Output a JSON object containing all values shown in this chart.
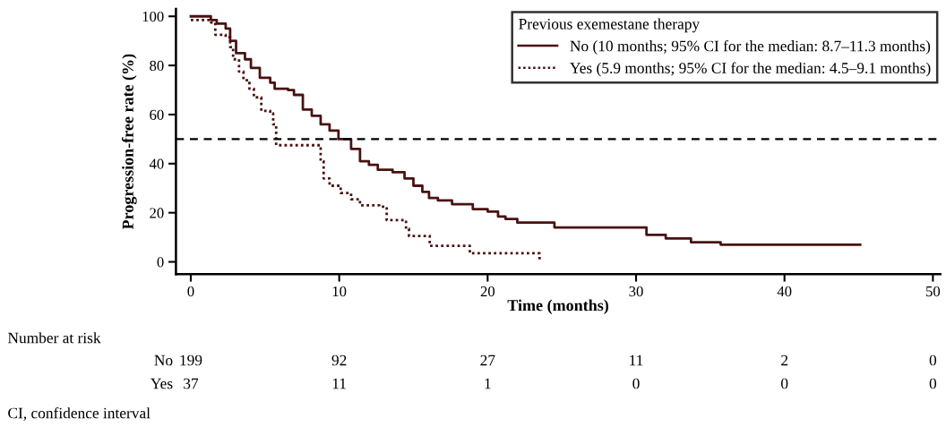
{
  "chart_data": {
    "type": "step",
    "xlabel": "Time (months)",
    "ylabel": "Progression-free rate (%)",
    "xlim": [
      -1,
      50.5
    ],
    "ylim": [
      -5,
      103
    ],
    "xticks": [
      0,
      10,
      20,
      30,
      40,
      50
    ],
    "yticks": [
      0,
      20,
      40,
      60,
      80,
      100
    ],
    "grid": false,
    "legend": "top right",
    "legend_title": "Previous exemestane therapy",
    "series": [
      {
        "name": "No (10 months; 95% CI for the median: 8.7–11.3 months)",
        "color": "#4a1212",
        "line_style": "solid",
        "x": [
          0,
          1.35,
          1.75,
          2.35,
          2.65,
          3.05,
          3.65,
          4.05,
          4.65,
          5.35,
          5.65,
          6.55,
          6.95,
          7.55,
          8.15,
          8.75,
          9.35,
          9.95,
          10.8,
          11.4,
          12.0,
          12.6,
          13.6,
          14.4,
          15.0,
          15.6,
          16.05,
          16.65,
          17.6,
          19.0,
          20.0,
          20.7,
          21.2,
          22.0,
          24.5,
          30.7,
          32.0,
          33.7,
          35.7,
          45.1
        ],
        "values": [
          100,
          98.5,
          97,
          95,
          90,
          85,
          82.5,
          79,
          75,
          73,
          70.5,
          70,
          68,
          62,
          59.5,
          56,
          53.5,
          50,
          46,
          41,
          39.5,
          37.5,
          36.5,
          34,
          31,
          28.5,
          26,
          25,
          23.5,
          21.5,
          20.5,
          18.5,
          17.5,
          16,
          14,
          11,
          9.5,
          8,
          7,
          7
        ]
      },
      {
        "name": "Yes (5.9 months; 95% CI for the median: 4.5–9.1 months)",
        "color": "#4a1212",
        "line_style": "dotted",
        "x": [
          0,
          1.35,
          1.65,
          2.35,
          2.65,
          2.85,
          3.25,
          3.55,
          3.95,
          4.25,
          4.75,
          5.35,
          5.55,
          5.75,
          8.55,
          8.75,
          8.95,
          9.35,
          10.1,
          10.8,
          11.4,
          12.7,
          13.2,
          14.5,
          14.7,
          16.1,
          18.8,
          23.5
        ],
        "values": [
          98.5,
          97.5,
          92.5,
          91.5,
          87.5,
          82.5,
          77.5,
          74,
          70.5,
          67,
          61.5,
          60.5,
          56,
          47.5,
          47.5,
          41,
          34,
          31,
          28,
          25.5,
          23,
          22.5,
          17,
          13.5,
          10.5,
          6.5,
          3.5,
          1
        ]
      }
    ],
    "ref_lines": [
      {
        "axis": "y",
        "value": 50,
        "color": "#000000",
        "line_style": "dashed"
      }
    ],
    "annotations": [
      "Number at risk",
      "No",
      "199",
      "92",
      "27",
      "11",
      "2",
      "0",
      "Yes",
      "37",
      "11",
      "1",
      "0",
      "0",
      "0",
      "CI, confidence interval"
    ]
  }
}
